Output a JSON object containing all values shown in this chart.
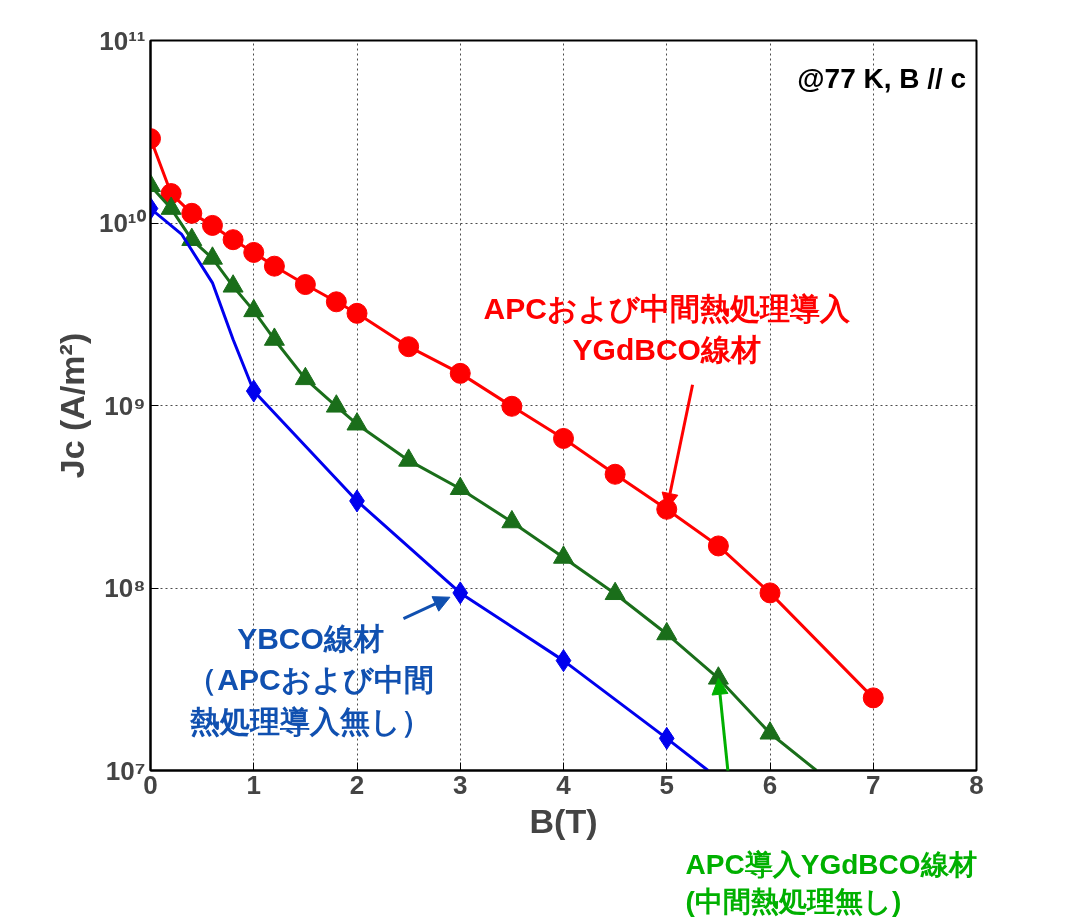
{
  "chart_data": {
    "type": "scatter",
    "xlabel": "B(T)",
    "ylabel": "Jc (A/m²)",
    "log": "y",
    "grid": true,
    "xlim": [
      0,
      8
    ],
    "ylim": [
      10000000.0,
      100000000000.0
    ],
    "xticks": [
      0,
      1,
      2,
      3,
      4,
      5,
      6,
      7,
      8
    ],
    "yticks": [
      {
        "value": 10000000.0,
        "label": "10⁷"
      },
      {
        "value": 100000000.0,
        "label": "10⁸"
      },
      {
        "value": 1000000000.0,
        "label": "10⁹"
      },
      {
        "value": 10000000000.0,
        "label": "10¹⁰"
      },
      {
        "value": 100000000000.0,
        "label": "10¹¹"
      }
    ],
    "series": [
      {
        "type": "line",
        "color": "#ff0000",
        "marker": "none",
        "x": [
          0,
          0.2,
          0.4,
          0.6,
          0.8,
          1.0,
          1.2,
          1.5,
          1.8,
          2.0,
          2.5,
          3.0,
          3.5,
          4.0,
          4.5,
          5.0,
          5.5,
          6.0,
          7.0
        ],
        "values": [
          29000000000.0,
          14500000000.0,
          11300000000.0,
          9700000000.0,
          8100000000.0,
          6900000000.0,
          5800000000.0,
          4600000000.0,
          3700000000.0,
          3200000000.0,
          2100000000.0,
          1500000000.0,
          990000000.0,
          660000000.0,
          420000000.0,
          270000000.0,
          170000000.0,
          94000000.0,
          25000000.0
        ]
      },
      {
        "color": "#ff0000",
        "marker": "circle",
        "x": [
          0,
          0.2,
          0.4,
          0.6,
          0.8,
          1.0,
          1.2,
          1.5,
          1.8,
          2.0,
          2.5,
          3.0,
          3.5,
          4.0,
          4.5,
          5.0,
          5.5,
          6.0,
          7.0
        ],
        "values": [
          29000000000.0,
          14500000000.0,
          11300000000.0,
          9700000000.0,
          8100000000.0,
          6900000000.0,
          5800000000.0,
          4600000000.0,
          3700000000.0,
          3200000000.0,
          2100000000.0,
          1500000000.0,
          990000000.0,
          660000000.0,
          420000000.0,
          270000000.0,
          170000000.0,
          94000000.0,
          25000000.0
        ]
      },
      {
        "type": "line",
        "color": "#1a6e1a",
        "marker": "none",
        "x": [
          0,
          0.2,
          0.4,
          0.6,
          0.8,
          1.0,
          1.2,
          1.5,
          1.8,
          2.0,
          2.5,
          3.0,
          3.5,
          4.0,
          4.5,
          5.0,
          5.5,
          6.0,
          6.45
        ],
        "values": [
          16000000000.0,
          12000000000.0,
          8100000000.0,
          6400000000.0,
          4500000000.0,
          3300000000.0,
          2300000000.0,
          1400000000.0,
          990000000.0,
          790000000.0,
          500000000.0,
          350000000.0,
          230000000.0,
          147000000.0,
          93000000.0,
          56000000.0,
          32000000.0,
          16000000.0,
          10000000.0
        ]
      },
      {
        "color": "#1a6e1a",
        "marker": "triangle",
        "x": [
          0,
          0.2,
          0.4,
          0.6,
          0.8,
          1.0,
          1.2,
          1.5,
          1.8,
          2.0,
          2.5,
          3.0,
          3.5,
          4.0,
          4.5,
          5.0,
          5.5,
          6.0
        ],
        "values": [
          16000000000.0,
          12000000000.0,
          8100000000.0,
          6400000000.0,
          4500000000.0,
          3300000000.0,
          2300000000.0,
          1400000000.0,
          990000000.0,
          790000000.0,
          500000000.0,
          350000000.0,
          230000000.0,
          147000000.0,
          93000000.0,
          56000000.0,
          32000000.0,
          16000000.0
        ]
      },
      {
        "type": "line",
        "color": "#0000ee",
        "marker": "none",
        "x": [
          0,
          0.3,
          0.6,
          0.8,
          1.0,
          1.5,
          2.0,
          3.0,
          4.0,
          5.0,
          5.4
        ],
        "values": [
          12000000000.0,
          8700000000.0,
          4700000000.0,
          2300000000.0,
          1200000000.0,
          600000000.0,
          300000000.0,
          94000000.0,
          40000000.0,
          15000000.0,
          10000000.0
        ]
      },
      {
        "color": "#0000ee",
        "marker": "diamond",
        "x": [
          0,
          1,
          2,
          3,
          4,
          5
        ],
        "values": [
          12000000000.0,
          1200000000.0,
          300000000.0,
          94000000.0,
          40000000.0,
          15000000.0
        ]
      }
    ],
    "annotations": [
      "@77 K, B // c",
      {
        "text": "APCおよび中間熱処理導入YGdBCO線材",
        "x": 5.0,
        "y": 270000000.0
      },
      {
        "text": "YBCO線材（APCおよび中間熱処理導入無し）",
        "x": 2.9,
        "y": 89000000.0
      },
      "APC導入YGdBCO線材(中間熱処理無し)"
    ]
  }
}
